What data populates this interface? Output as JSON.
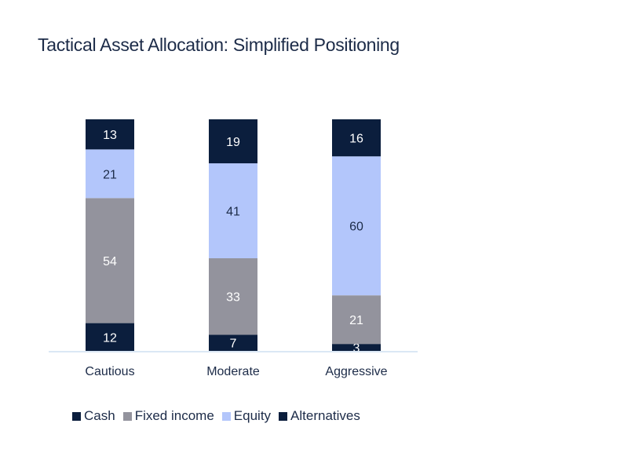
{
  "chart_data": {
    "type": "bar",
    "stacked": true,
    "title": "Tactical Asset Allocation: Simplified Positioning",
    "xlabel": "",
    "ylabel": "",
    "ylim": [
      0,
      100
    ],
    "grid": false,
    "legend_position": "bottom-left",
    "categories": [
      "Cautious",
      "Moderate",
      "Aggressive"
    ],
    "series": [
      {
        "name": "Cash",
        "color": "#0b1e3d",
        "label_color": "#ffffff",
        "values": [
          12,
          7,
          3
        ]
      },
      {
        "name": "Fixed income",
        "color": "#93939d",
        "label_color": "#ffffff",
        "values": [
          54,
          33,
          21
        ]
      },
      {
        "name": "Equity",
        "color": "#b3c6fb",
        "label_color": "#1c2b48",
        "values": [
          21,
          41,
          60
        ]
      },
      {
        "name": "Alternatives",
        "color": "#0b1e3d",
        "label_color": "#ffffff",
        "values": [
          13,
          19,
          16
        ]
      }
    ]
  }
}
